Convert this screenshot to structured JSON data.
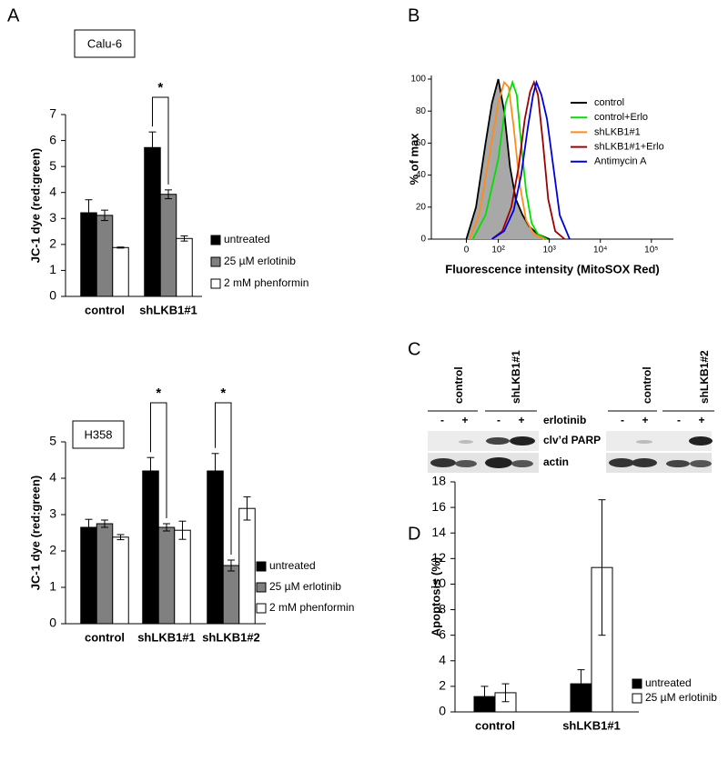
{
  "panel_labels": [
    "A",
    "B",
    "C",
    "D"
  ],
  "chart_data": [
    {
      "type": "bar",
      "title": "Calu-6",
      "ylabel": "JC-1 dye (red:green)",
      "categories": [
        "control",
        "shLKB1#1"
      ],
      "series": [
        {
          "name": "untreated",
          "color": "#000000",
          "values": [
            3.22,
            5.73
          ],
          "errors": [
            0.5,
            0.6
          ]
        },
        {
          "name": "25 µM erlotinib",
          "color": "#808080",
          "values": [
            3.12,
            3.93
          ],
          "errors": [
            0.2,
            0.17
          ]
        },
        {
          "name": "2 mM phenformin",
          "color": "#ffffff",
          "values": [
            1.88,
            2.23
          ],
          "errors": [
            0.02,
            0.1
          ]
        }
      ],
      "ylim": [
        0,
        7
      ],
      "yticks": [
        0,
        1,
        2,
        3,
        4,
        5,
        6,
        7
      ],
      "annotations": [
        "*"
      ]
    },
    {
      "type": "bar",
      "title": "H358",
      "ylabel": "JC-1 dye (red:green)",
      "categories": [
        "control",
        "shLKB1#1",
        "shLKB1#2"
      ],
      "series": [
        {
          "name": "untreated",
          "color": "#000000",
          "values": [
            2.65,
            4.2,
            4.2
          ],
          "errors": [
            0.22,
            0.37,
            0.48
          ]
        },
        {
          "name": "25 µM erlotinib",
          "color": "#808080",
          "values": [
            2.75,
            2.65,
            1.6
          ],
          "errors": [
            0.1,
            0.1,
            0.15
          ]
        },
        {
          "name": "2 mM phenformin",
          "color": "#ffffff",
          "values": [
            2.38,
            2.57,
            3.17
          ],
          "errors": [
            0.07,
            0.25,
            0.32
          ]
        }
      ],
      "ylim": [
        0,
        5
      ],
      "yticks": [
        0,
        1,
        2,
        3,
        4,
        5
      ],
      "annotations": [
        "*",
        "*"
      ]
    },
    {
      "type": "line",
      "ylabel": "% of max",
      "xlabel": "Fluorescence intensity (MitoSOX Red)",
      "xscale": "logicle",
      "xlim": [
        -110,
        270000
      ],
      "xticks": [
        0,
        {
          "value": 100,
          "label": "10²"
        },
        {
          "value": 1000,
          "label": "10³"
        },
        {
          "value": 10000,
          "label": "10⁴"
        },
        {
          "value": 100000,
          "label": "10⁵"
        }
      ],
      "ylim": [
        0,
        100
      ],
      "yticks": [
        0,
        20,
        40,
        60,
        80,
        100
      ],
      "series": [
        {
          "name": "control",
          "color": "#000000",
          "fill_color": "#a8a8a8",
          "x": [
            0,
            30,
            60,
            80,
            100,
            130,
            170,
            220,
            300,
            400,
            600,
            1000
          ],
          "values": [
            0,
            20,
            60,
            85,
            100,
            80,
            45,
            25,
            15,
            8,
            3,
            0
          ]
        },
        {
          "name": "control+Erlo",
          "color": "#00e000",
          "x": [
            20,
            60,
            100,
            140,
            190,
            230,
            280,
            350,
            450,
            600,
            900
          ],
          "values": [
            0,
            15,
            50,
            85,
            98,
            90,
            60,
            30,
            10,
            3,
            0
          ]
        },
        {
          "name": "shLKB1#1",
          "color": "#ff8c1a",
          "x": [
            10,
            40,
            70,
            100,
            130,
            160,
            200,
            260,
            350,
            500,
            800
          ],
          "values": [
            0,
            15,
            50,
            85,
            98,
            95,
            70,
            35,
            12,
            3,
            0
          ]
        },
        {
          "name": "shLKB1#1+Erlo",
          "color": "#a00000",
          "x": [
            80,
            120,
            180,
            250,
            330,
            420,
            500,
            600,
            750,
            950,
            1300,
            2000
          ],
          "values": [
            0,
            5,
            20,
            45,
            75,
            92,
            98,
            90,
            60,
            25,
            5,
            0
          ]
        },
        {
          "name": "Antimycin A",
          "color": "#0000dd",
          "x": [
            80,
            130,
            200,
            280,
            380,
            480,
            560,
            700,
            900,
            1200,
            1600,
            2500
          ],
          "values": [
            0,
            5,
            18,
            40,
            70,
            90,
            98,
            90,
            75,
            45,
            15,
            0
          ]
        }
      ]
    },
    {
      "type": "bar",
      "ylabel": "Apoptosis (%)",
      "categories": [
        "control",
        "shLKB1#1"
      ],
      "series": [
        {
          "name": "untreated",
          "color": "#000000",
          "values": [
            1.2,
            2.2
          ],
          "errors": [
            0.8,
            1.1
          ]
        },
        {
          "name": "25 µM erlotinib",
          "color": "#ffffff",
          "values": [
            1.5,
            11.3
          ],
          "errors": [
            0.7,
            5.3
          ]
        }
      ],
      "ylim": [
        0,
        18
      ],
      "yticks": [
        0,
        2,
        4,
        6,
        8,
        10,
        12,
        14,
        16,
        18
      ]
    }
  ],
  "blot": {
    "columns": [
      "control",
      "shLKB1#1",
      "control",
      "shLKB1#2"
    ],
    "lanes": [
      "-",
      "+",
      "-",
      "+",
      "-",
      "+",
      "-",
      "+"
    ],
    "rows": [
      "erlotinib",
      "clv’d PARP",
      "actin"
    ]
  }
}
